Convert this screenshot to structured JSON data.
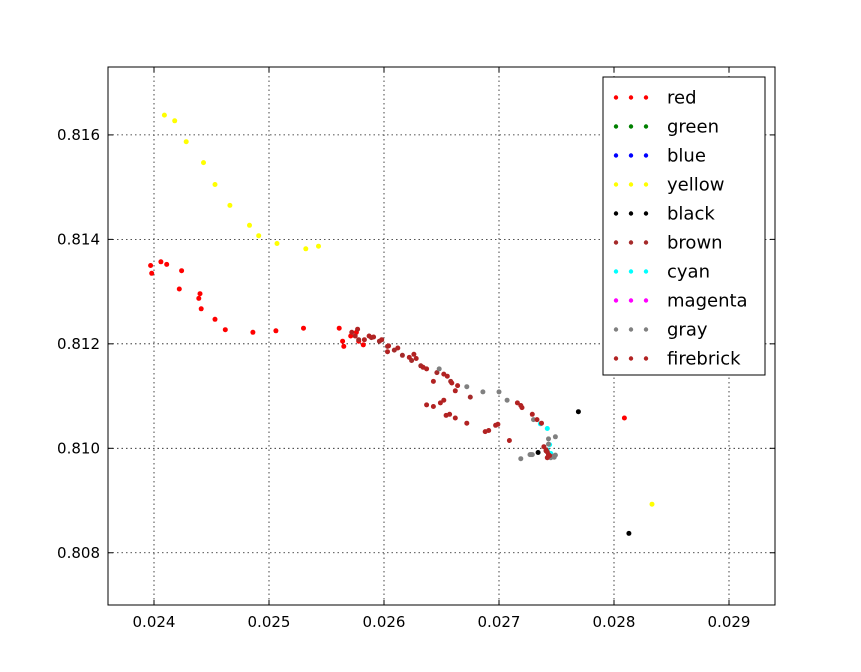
{
  "chart_data": {
    "type": "scatter",
    "title": "",
    "xlabel": "",
    "ylabel": "",
    "xlim": [
      0.0236,
      0.0294
    ],
    "ylim": [
      0.807,
      0.8173
    ],
    "xticks": [
      0.024,
      0.025,
      0.026,
      0.027,
      0.028,
      0.029
    ],
    "yticks": [
      0.808,
      0.81,
      0.812,
      0.814,
      0.816
    ],
    "xtick_labels": [
      "0.024",
      "0.025",
      "0.026",
      "0.027",
      "0.028",
      "0.029"
    ],
    "ytick_labels": [
      "0.808",
      "0.810",
      "0.812",
      "0.814",
      "0.816"
    ],
    "grid": true,
    "legend_position": "top-right",
    "series": [
      {
        "name": "red",
        "color": "#ff0000",
        "points": [
          [
            0.02397,
            0.8135
          ],
          [
            0.02398,
            0.81335
          ],
          [
            0.02406,
            0.81357
          ],
          [
            0.02411,
            0.81352
          ],
          [
            0.02424,
            0.8134
          ],
          [
            0.02422,
            0.81305
          ],
          [
            0.0244,
            0.81296
          ],
          [
            0.02439,
            0.81287
          ],
          [
            0.02441,
            0.81267
          ],
          [
            0.02453,
            0.81247
          ],
          [
            0.02462,
            0.81227
          ],
          [
            0.02486,
            0.81222
          ],
          [
            0.02506,
            0.81225
          ],
          [
            0.0253,
            0.8123
          ],
          [
            0.02561,
            0.8123
          ],
          [
            0.02564,
            0.81205
          ],
          [
            0.02565,
            0.81195
          ],
          [
            0.02571,
            0.81215
          ],
          [
            0.02576,
            0.81222
          ],
          [
            0.02578,
            0.81205
          ],
          [
            0.02582,
            0.81198
          ],
          [
            0.02809,
            0.81058
          ]
        ]
      },
      {
        "name": "green",
        "color": "#008000",
        "points": []
      },
      {
        "name": "blue",
        "color": "#0000ff",
        "points": []
      },
      {
        "name": "yellow",
        "color": "#ffff00",
        "points": [
          [
            0.02409,
            0.81638
          ],
          [
            0.02418,
            0.81627
          ],
          [
            0.02428,
            0.81587
          ],
          [
            0.02443,
            0.81547
          ],
          [
            0.02453,
            0.81505
          ],
          [
            0.02466,
            0.81465
          ],
          [
            0.02483,
            0.81427
          ],
          [
            0.02491,
            0.81407
          ],
          [
            0.02507,
            0.81392
          ],
          [
            0.02532,
            0.81382
          ],
          [
            0.02543,
            0.81387
          ],
          [
            0.02833,
            0.80893
          ]
        ]
      },
      {
        "name": "black",
        "color": "#000000",
        "points": [
          [
            0.02769,
            0.8107
          ],
          [
            0.02813,
            0.80837
          ],
          [
            0.02734,
            0.80992
          ],
          [
            0.02741,
            0.80995
          ],
          [
            0.02744,
            0.80987
          ]
        ]
      },
      {
        "name": "brown",
        "color": "#a52a2a",
        "points": [
          [
            0.02578,
            0.81208
          ],
          [
            0.02589,
            0.81212
          ],
          [
            0.02596,
            0.81205
          ],
          [
            0.02603,
            0.81195
          ],
          [
            0.02609,
            0.81188
          ],
          [
            0.02616,
            0.81178
          ],
          [
            0.02624,
            0.81168
          ],
          [
            0.02632,
            0.81158
          ],
          [
            0.02646,
            0.81145
          ],
          [
            0.02658,
            0.81128
          ],
          [
            0.02675,
            0.81098
          ]
        ]
      },
      {
        "name": "cyan",
        "color": "#00ffff",
        "points": [
          [
            0.02736,
            0.81047
          ],
          [
            0.02742,
            0.81038
          ],
          [
            0.02744,
            0.81007
          ],
          [
            0.02742,
            0.80997
          ],
          [
            0.02745,
            0.8099
          ]
        ]
      },
      {
        "name": "magenta",
        "color": "#ff00ff",
        "points": []
      },
      {
        "name": "gray",
        "color": "#808080",
        "points": [
          [
            0.02648,
            0.81152
          ],
          [
            0.02672,
            0.81118
          ],
          [
            0.02686,
            0.81108
          ],
          [
            0.027,
            0.81108
          ],
          [
            0.02707,
            0.81092
          ],
          [
            0.0273,
            0.81055
          ],
          [
            0.02743,
            0.81018
          ],
          [
            0.02749,
            0.81022
          ],
          [
            0.02743,
            0.81008
          ],
          [
            0.02728,
            0.80988
          ],
          [
            0.02729,
            0.80988
          ],
          [
            0.02719,
            0.8098
          ],
          [
            0.02727,
            0.80988
          ],
          [
            0.02743,
            0.80985
          ],
          [
            0.02747,
            0.80985
          ],
          [
            0.02748,
            0.80983
          ],
          [
            0.02745,
            0.80982
          ],
          [
            0.02749,
            0.80987
          ]
        ]
      },
      {
        "name": "firebrick",
        "color": "#b22222",
        "points": [
          [
            0.02572,
            0.81222
          ],
          [
            0.02575,
            0.81215
          ],
          [
            0.02577,
            0.81228
          ],
          [
            0.02583,
            0.81208
          ],
          [
            0.02587,
            0.81215
          ],
          [
            0.02591,
            0.81213
          ],
          [
            0.02598,
            0.81208
          ],
          [
            0.02604,
            0.81196
          ],
          [
            0.02612,
            0.81192
          ],
          [
            0.02603,
            0.81185
          ],
          [
            0.02622,
            0.81174
          ],
          [
            0.02626,
            0.8118
          ],
          [
            0.02628,
            0.81172
          ],
          [
            0.02634,
            0.81155
          ],
          [
            0.02637,
            0.81152
          ],
          [
            0.02643,
            0.81128
          ],
          [
            0.02652,
            0.81142
          ],
          [
            0.02655,
            0.81138
          ],
          [
            0.02659,
            0.81125
          ],
          [
            0.02664,
            0.8112
          ],
          [
            0.02662,
            0.8111
          ],
          [
            0.02652,
            0.81092
          ],
          [
            0.02643,
            0.8108
          ],
          [
            0.02637,
            0.81083
          ],
          [
            0.02649,
            0.81087
          ],
          [
            0.02654,
            0.81063
          ],
          [
            0.02657,
            0.81065
          ],
          [
            0.02662,
            0.81058
          ],
          [
            0.02672,
            0.81048
          ],
          [
            0.02688,
            0.81032
          ],
          [
            0.02691,
            0.81034
          ],
          [
            0.02697,
            0.81044
          ],
          [
            0.02699,
            0.81046
          ],
          [
            0.02709,
            0.81015
          ],
          [
            0.02716,
            0.81087
          ],
          [
            0.02719,
            0.81082
          ],
          [
            0.0272,
            0.81078
          ],
          [
            0.02729,
            0.81065
          ],
          [
            0.02733,
            0.81055
          ],
          [
            0.02737,
            0.81048
          ],
          [
            0.02739,
            0.81003
          ],
          [
            0.02741,
            0.80997
          ],
          [
            0.02741,
            0.80995
          ],
          [
            0.02742,
            0.80993
          ],
          [
            0.02743,
            0.80988
          ],
          [
            0.02744,
            0.80986
          ],
          [
            0.02742,
            0.80982
          ]
        ]
      }
    ]
  }
}
